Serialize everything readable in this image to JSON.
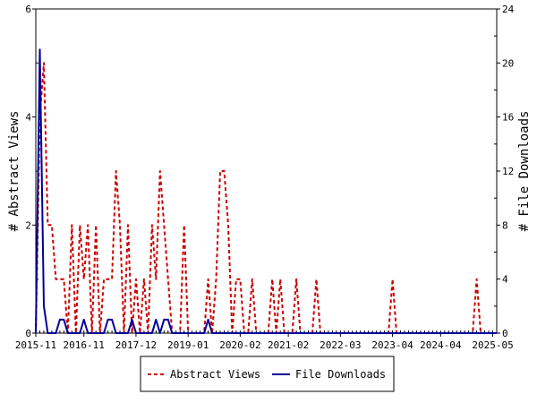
{
  "chart_data": {
    "type": "line",
    "x_ticks": [
      "2015-11",
      "2016-11",
      "2017-12",
      "2019-01",
      "2020-02",
      "2021-02",
      "2022-03",
      "2023-04",
      "2024-04",
      "2025-05"
    ],
    "x_range": [
      "2015-11",
      "2025-06"
    ],
    "ylabel_left": "# Abstract Views",
    "ylabel_right": "# File Downloads",
    "ylim_left": [
      0,
      6
    ],
    "ylim_right": [
      0,
      24
    ],
    "yticks_left": [
      0,
      2,
      4,
      6
    ],
    "yticks_right": [
      0,
      4,
      8,
      12,
      16,
      20,
      24
    ],
    "grid": false,
    "legend_position": "bottom-center",
    "series": [
      {
        "name": "Abstract Views",
        "axis": "left",
        "color": "#cc0000",
        "style": "dashed",
        "points": [
          [
            "2015-11",
            0
          ],
          [
            "2015-12",
            4
          ],
          [
            "2016-01",
            5
          ],
          [
            "2016-02",
            2
          ],
          [
            "2016-03",
            2
          ],
          [
            "2016-04",
            1
          ],
          [
            "2016-05",
            1
          ],
          [
            "2016-06",
            1
          ],
          [
            "2016-07",
            0
          ],
          [
            "2016-08",
            2
          ],
          [
            "2016-09",
            0
          ],
          [
            "2016-10",
            2
          ],
          [
            "2016-11",
            1
          ],
          [
            "2016-12",
            2
          ],
          [
            "2017-01",
            0
          ],
          [
            "2017-02",
            2
          ],
          [
            "2017-03",
            0
          ],
          [
            "2017-04",
            1
          ],
          [
            "2017-05",
            1
          ],
          [
            "2017-06",
            1
          ],
          [
            "2017-07",
            3
          ],
          [
            "2017-08",
            2
          ],
          [
            "2017-09",
            0
          ],
          [
            "2017-10",
            2
          ],
          [
            "2017-11",
            0
          ],
          [
            "2017-12",
            1
          ],
          [
            "2018-01",
            0
          ],
          [
            "2018-02",
            1
          ],
          [
            "2018-03",
            0
          ],
          [
            "2018-04",
            2
          ],
          [
            "2018-05",
            1
          ],
          [
            "2018-06",
            3
          ],
          [
            "2018-07",
            2
          ],
          [
            "2018-08",
            1
          ],
          [
            "2018-09",
            0
          ],
          [
            "2018-10",
            0
          ],
          [
            "2018-11",
            0
          ],
          [
            "2018-12",
            2
          ],
          [
            "2019-01",
            0
          ],
          [
            "2019-02",
            0
          ],
          [
            "2019-03",
            0
          ],
          [
            "2019-04",
            0
          ],
          [
            "2019-05",
            0
          ],
          [
            "2019-06",
            1
          ],
          [
            "2019-07",
            0
          ],
          [
            "2019-08",
            1
          ],
          [
            "2019-09",
            3
          ],
          [
            "2019-10",
            3
          ],
          [
            "2019-11",
            2
          ],
          [
            "2019-12",
            0
          ],
          [
            "2020-01",
            1
          ],
          [
            "2020-02",
            1
          ],
          [
            "2020-03",
            0
          ],
          [
            "2020-04",
            0
          ],
          [
            "2020-05",
            1
          ],
          [
            "2020-06",
            0
          ],
          [
            "2020-07",
            0
          ],
          [
            "2020-08",
            0
          ],
          [
            "2020-09",
            0
          ],
          [
            "2020-10",
            1
          ],
          [
            "2020-11",
            0
          ],
          [
            "2020-12",
            1
          ],
          [
            "2021-01",
            0
          ],
          [
            "2021-02",
            0
          ],
          [
            "2021-03",
            0
          ],
          [
            "2021-04",
            1
          ],
          [
            "2021-05",
            0
          ],
          [
            "2021-06",
            0
          ],
          [
            "2021-07",
            0
          ],
          [
            "2021-08",
            0
          ],
          [
            "2021-09",
            1
          ],
          [
            "2021-10",
            0
          ],
          [
            "2021-11",
            0
          ],
          [
            "2021-12",
            0
          ],
          [
            "2022-03",
            0
          ],
          [
            "2022-06",
            0
          ],
          [
            "2022-09",
            0
          ],
          [
            "2022-12",
            0
          ],
          [
            "2023-03",
            0
          ],
          [
            "2023-04",
            1
          ],
          [
            "2023-05",
            0
          ],
          [
            "2023-09",
            0
          ],
          [
            "2024-01",
            0
          ],
          [
            "2024-06",
            0
          ],
          [
            "2024-12",
            0
          ],
          [
            "2025-01",
            1
          ],
          [
            "2025-02",
            0
          ],
          [
            "2025-05",
            0
          ],
          [
            "2025-06",
            0
          ]
        ]
      },
      {
        "name": "File Downloads",
        "axis": "right",
        "color": "#000099",
        "style": "solid",
        "points": [
          [
            "2015-11",
            0
          ],
          [
            "2015-12",
            21
          ],
          [
            "2016-01",
            2
          ],
          [
            "2016-02",
            0
          ],
          [
            "2016-03",
            0
          ],
          [
            "2016-04",
            0
          ],
          [
            "2016-05",
            1
          ],
          [
            "2016-06",
            1
          ],
          [
            "2016-07",
            0
          ],
          [
            "2016-08",
            0
          ],
          [
            "2016-09",
            0
          ],
          [
            "2016-10",
            0
          ],
          [
            "2016-11",
            1
          ],
          [
            "2016-12",
            0
          ],
          [
            "2017-01",
            0
          ],
          [
            "2017-02",
            0
          ],
          [
            "2017-03",
            0
          ],
          [
            "2017-04",
            0
          ],
          [
            "2017-05",
            1
          ],
          [
            "2017-06",
            1
          ],
          [
            "2017-07",
            0
          ],
          [
            "2017-08",
            0
          ],
          [
            "2017-09",
            0
          ],
          [
            "2017-10",
            0
          ],
          [
            "2017-11",
            1
          ],
          [
            "2017-12",
            0
          ],
          [
            "2018-01",
            0
          ],
          [
            "2018-02",
            0
          ],
          [
            "2018-03",
            0
          ],
          [
            "2018-04",
            0
          ],
          [
            "2018-05",
            1
          ],
          [
            "2018-06",
            0
          ],
          [
            "2018-07",
            1
          ],
          [
            "2018-08",
            1
          ],
          [
            "2018-09",
            0
          ],
          [
            "2018-10",
            0
          ],
          [
            "2018-11",
            0
          ],
          [
            "2018-12",
            0
          ],
          [
            "2019-01",
            0
          ],
          [
            "2019-02",
            0
          ],
          [
            "2019-03",
            0
          ],
          [
            "2019-04",
            0
          ],
          [
            "2019-05",
            0
          ],
          [
            "2019-06",
            1
          ],
          [
            "2019-07",
            0
          ],
          [
            "2019-08",
            0
          ],
          [
            "2019-12",
            0
          ],
          [
            "2020-06",
            0
          ],
          [
            "2021-01",
            0
          ],
          [
            "2022-01",
            0
          ],
          [
            "2023-01",
            0
          ],
          [
            "2024-01",
            0
          ],
          [
            "2025-01",
            0
          ],
          [
            "2025-06",
            0
          ]
        ]
      }
    ]
  }
}
